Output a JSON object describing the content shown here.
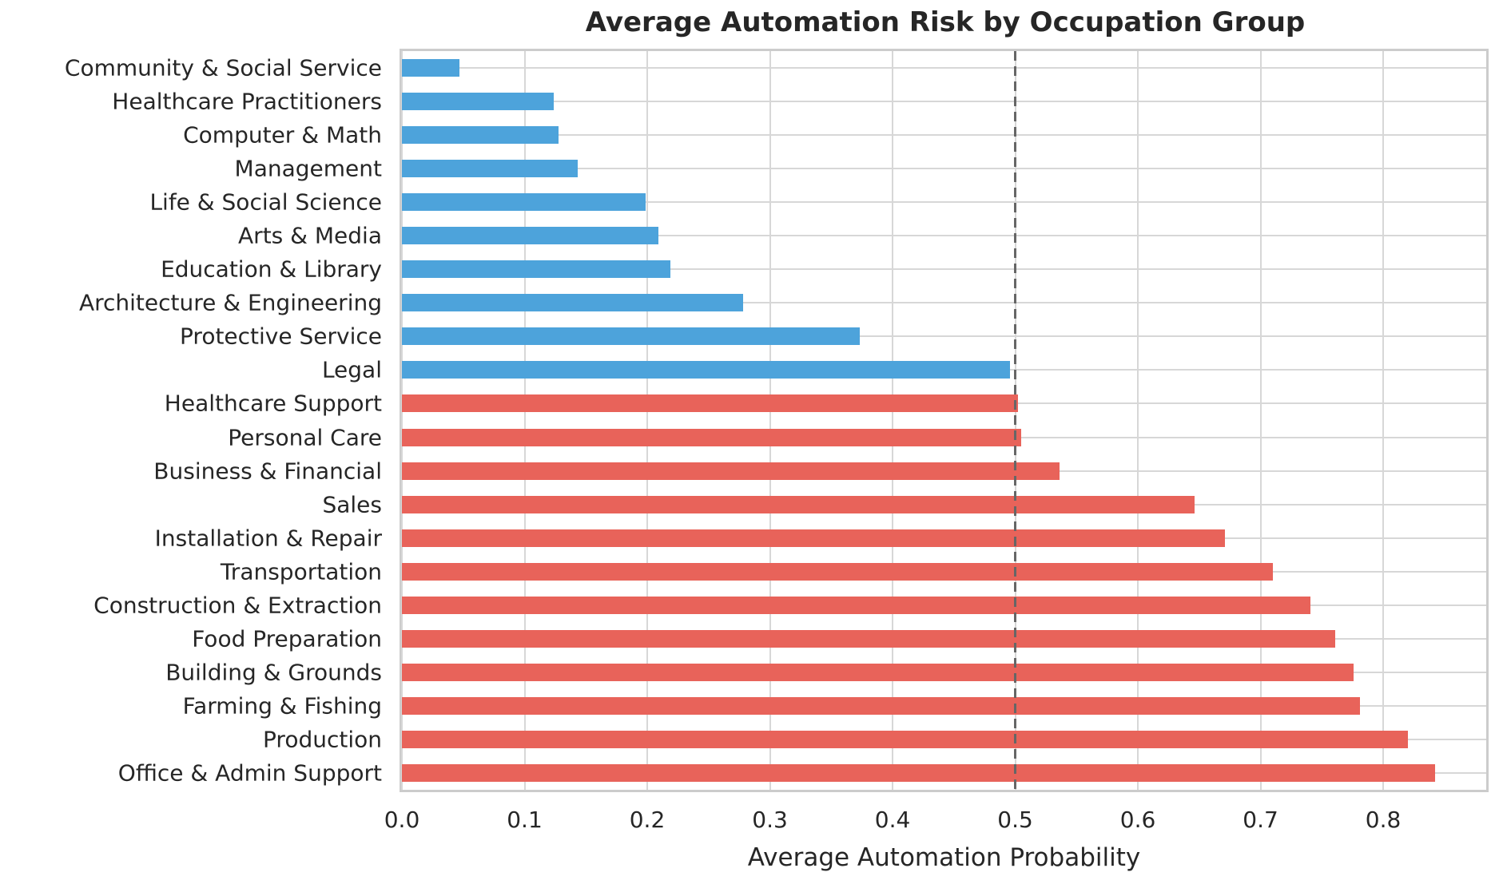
{
  "figure": {
    "title": "Average Automation Risk by Occupation Group"
  },
  "chart_data": {
    "type": "bar",
    "orientation": "horizontal",
    "title": "Average Automation Risk by Occupation Group",
    "xlabel": "Average Automation Probability",
    "ylabel": "",
    "grid": true,
    "legend": "none",
    "xlim": [
      0,
      0.884
    ],
    "xticks": [
      0.0,
      0.1,
      0.2,
      0.3,
      0.4,
      0.5,
      0.6,
      0.7,
      0.8
    ],
    "xtick_labels": [
      "0.0",
      "0.1",
      "0.2",
      "0.3",
      "0.4",
      "0.5",
      "0.6",
      "0.7",
      "0.8"
    ],
    "threshold": 0.5,
    "categories": [
      "Community & Social Service",
      "Healthcare Practitioners",
      "Computer & Math",
      "Management",
      "Life & Social Science",
      "Arts & Media",
      "Education & Library",
      "Architecture & Engineering",
      "Protective Service",
      "Legal",
      "Healthcare Support",
      "Personal Care",
      "Business & Financial",
      "Sales",
      "Installation & Repair",
      "Transportation",
      "Construction & Extraction",
      "Food Preparation",
      "Building & Grounds",
      "Farming & Fishing",
      "Production",
      "Office & Admin Support"
    ],
    "values": [
      0.047,
      0.124,
      0.128,
      0.143,
      0.199,
      0.209,
      0.219,
      0.278,
      0.373,
      0.496,
      0.502,
      0.505,
      0.536,
      0.646,
      0.671,
      0.71,
      0.741,
      0.761,
      0.776,
      0.781,
      0.82,
      0.842
    ],
    "colors": {
      "below_threshold": "#4da3db",
      "above_threshold": "#e8635a",
      "grid": "#d7d7d7",
      "spine": "#cccccc",
      "threshold_line": "#666666",
      "text": "#262626",
      "background": "#ffffff"
    }
  }
}
